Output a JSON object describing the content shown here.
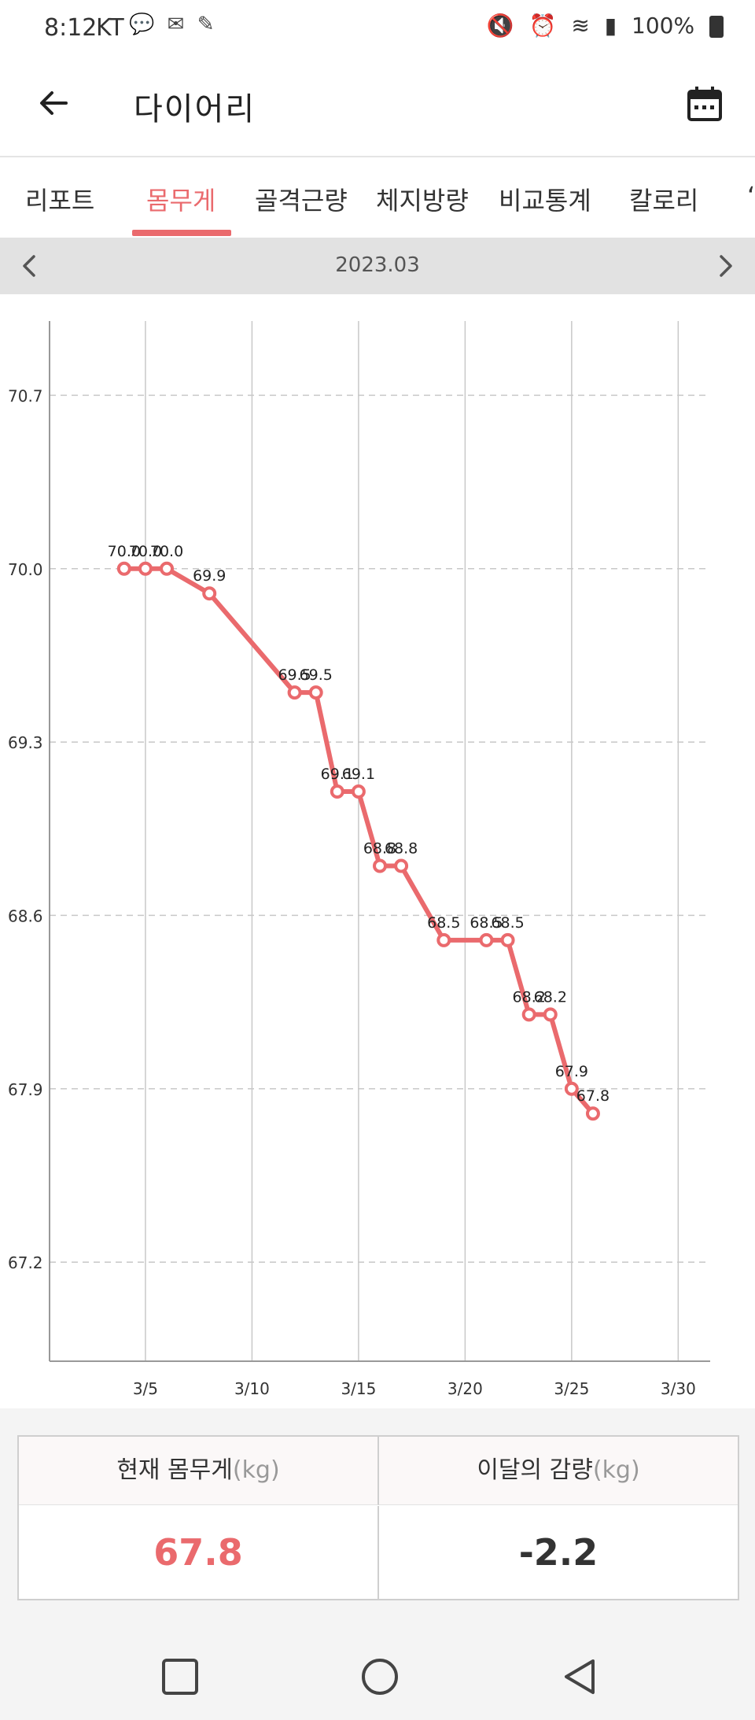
{
  "status_bar": {
    "time": "8:12",
    "carrier": "KT",
    "battery": "100%"
  },
  "header": {
    "title": "다이어리"
  },
  "tabs": [
    {
      "label": "리포트",
      "active": false
    },
    {
      "label": "몸무게",
      "active": true
    },
    {
      "label": "골격근량",
      "active": false
    },
    {
      "label": "체지방량",
      "active": false
    },
    {
      "label": "비교통계",
      "active": false
    },
    {
      "label": "칼로리",
      "active": false
    }
  ],
  "month_nav": {
    "label": "2023.03"
  },
  "chart_data": {
    "type": "line",
    "x": [
      4,
      5,
      6,
      8,
      12,
      13,
      14,
      15,
      16,
      17,
      19,
      21,
      22,
      23,
      24,
      25,
      26
    ],
    "values": [
      70.0,
      70.0,
      70.0,
      69.9,
      69.5,
      69.5,
      69.1,
      69.1,
      68.8,
      68.8,
      68.5,
      68.5,
      68.5,
      68.2,
      68.2,
      67.9,
      67.8
    ],
    "data_labels": [
      "70.0",
      "70.0",
      "70.0",
      "69.9",
      "69.5",
      "69.5",
      "69.1",
      "69.1",
      "68.8",
      "68.8",
      "68.5",
      "68.5",
      "68.5",
      "68.2",
      "68.2",
      "67.9",
      "67.8"
    ],
    "x_ticks": [
      5,
      10,
      15,
      20,
      25,
      30
    ],
    "x_tick_labels": [
      "3/5",
      "3/10",
      "3/15",
      "3/20",
      "3/25",
      "3/30"
    ],
    "y_ticks": [
      70.7,
      70.0,
      69.3,
      68.6,
      67.9,
      67.2
    ],
    "y_tick_labels": [
      "70.7",
      "70.0",
      "69.3",
      "68.6",
      "67.9",
      "67.2"
    ],
    "xlim": [
      0.5,
      31.5
    ],
    "ylim": [
      66.8,
      71.0
    ],
    "grid": true,
    "line_color": "#ea6a6d"
  },
  "summary": {
    "current_weight_label": "현재 몸무게",
    "current_weight_unit": "(kg)",
    "current_weight_value": "67.8",
    "monthly_loss_label": "이달의 감량",
    "monthly_loss_unit": "(kg)",
    "monthly_loss_value": "-2.2"
  },
  "colors": {
    "accent": "#ea6a6d",
    "month_bar": "#e2e2e2"
  }
}
